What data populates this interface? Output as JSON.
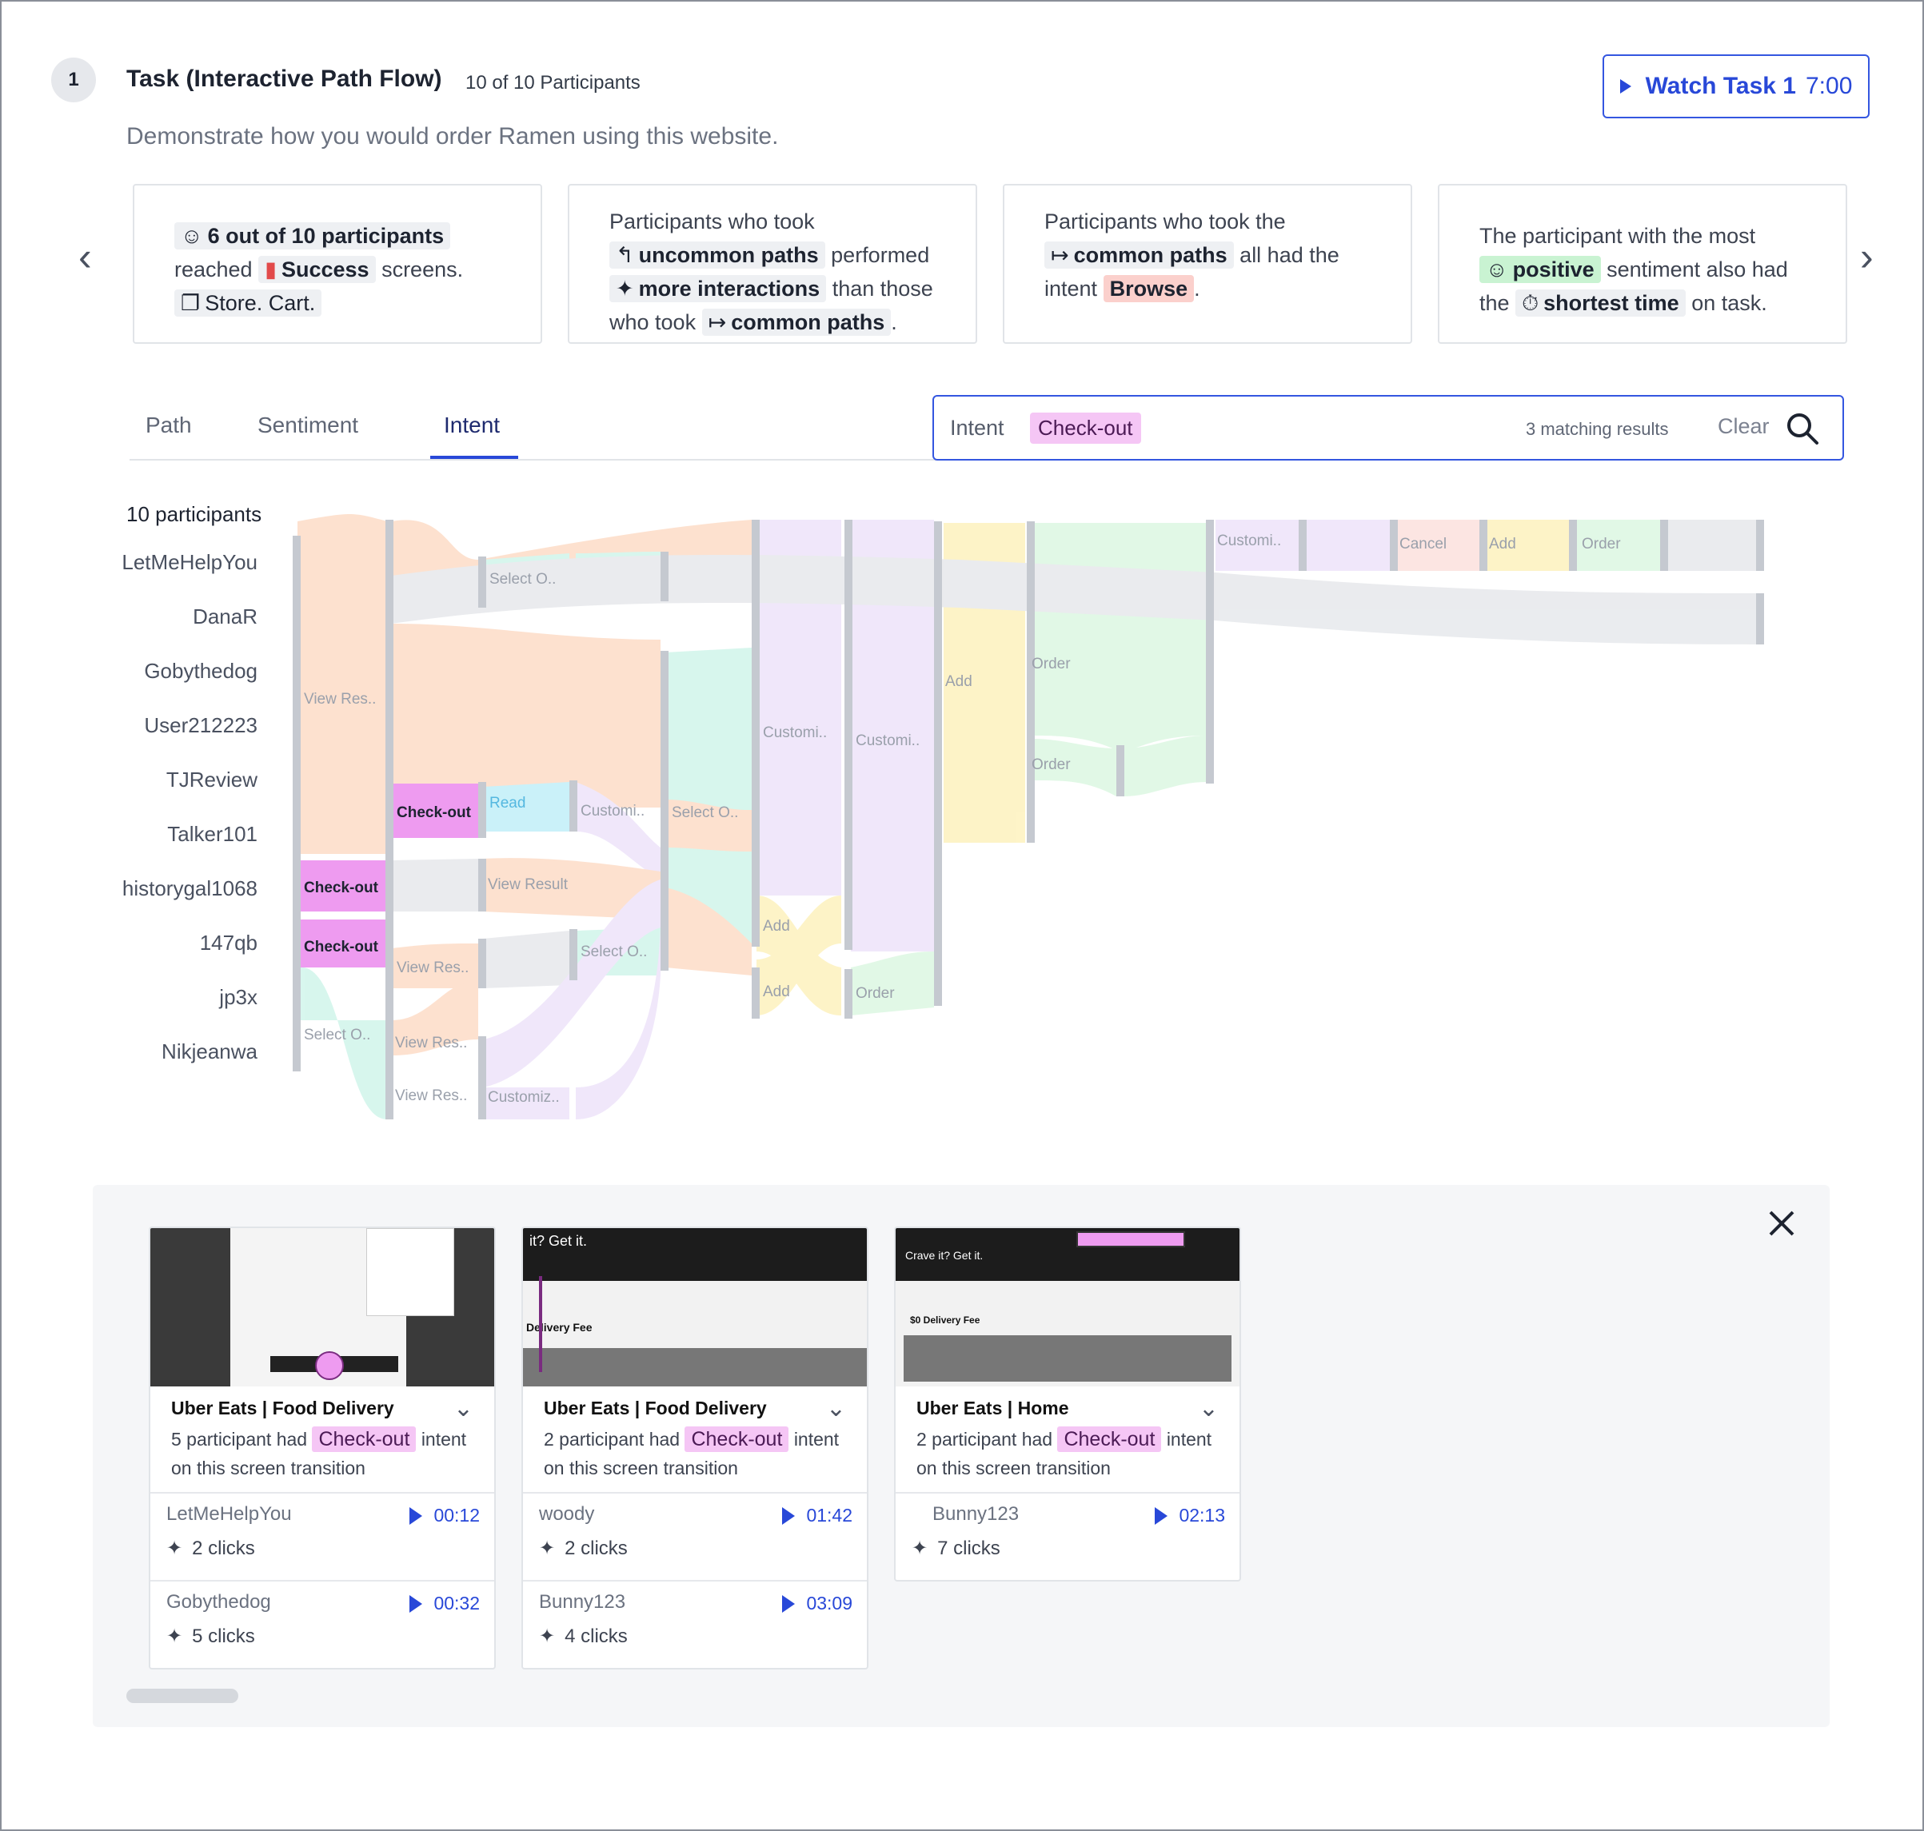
{
  "task": {
    "number": "1",
    "title": "Task (Interactive Path Flow)",
    "participants_count": "10 of 10 Participants",
    "description": "Demonstrate how you would order Ramen using this website.",
    "watch_label": "Watch Task 1",
    "watch_duration": "7:00"
  },
  "insights": [
    {
      "parts": [
        "6 out of 10 participants",
        "reached",
        "Success",
        "screens.",
        "Store. Cart."
      ]
    },
    {
      "parts": [
        "Participants who took",
        "uncommon paths",
        "performed",
        "more interactions",
        "than those",
        "who took",
        "common paths",
        "."
      ]
    },
    {
      "parts": [
        "Participants who took the",
        "common paths",
        "all had the",
        "intent",
        "Browse",
        "."
      ]
    },
    {
      "parts": [
        "The participant with the most",
        "positive",
        "sentiment also had",
        "the",
        "shortest time",
        "on task."
      ]
    }
  ],
  "tabs": [
    "Path",
    "Sentiment",
    "Intent"
  ],
  "search": {
    "label": "Intent",
    "value": "Check-out",
    "results": "3 matching results",
    "clear": "Clear"
  },
  "flow": {
    "total": "10 participants",
    "participants": [
      "LetMeHelpYou",
      "DanaR",
      "Gobythedog",
      "User212223",
      "TJReview",
      "Talker101",
      "historygal1068",
      "147qb",
      "jp3x",
      "Nikjeanwa"
    ],
    "nodes": {
      "n1": "View Res..",
      "n2": "Check-out",
      "n3": "Check-out",
      "n4": "Select O..",
      "n5": "Select O..",
      "n6": "Check-out",
      "n7": "View Res..",
      "n8": "View Res..",
      "n9": "View Res..",
      "n10": "Read",
      "n11": "View Result",
      "n12": "Customiz..",
      "n13": "Customi..",
      "n14": "Select O..",
      "n15": "Select O..",
      "n16": "Customi..",
      "n17": "Add",
      "n18": "Add",
      "n19": "Customi..",
      "n20": "Order",
      "n21": "Add",
      "n22": "Order",
      "n23": "Order",
      "n24": "Customi..",
      "n25": "Cancel",
      "n26": "Add",
      "n27": "Order"
    }
  },
  "screens": [
    {
      "title": "Uber Eats | Food Delivery",
      "desc_pre": "5 participant had",
      "intent": "Check-out",
      "desc_post": "intent",
      "desc_line2": "on this screen transition",
      "rows": [
        {
          "name": "LetMeHelpYou",
          "time": "00:12",
          "clicks": "2 clicks"
        },
        {
          "name": "Gobythedog",
          "time": "00:32",
          "clicks": "5 clicks"
        }
      ]
    },
    {
      "title": "Uber Eats | Food Delivery",
      "desc_pre": "2 participant had",
      "intent": "Check-out",
      "desc_post": "intent",
      "desc_line2": "on this screen transition",
      "shot_head": "it? Get it.",
      "shot_sub": "Delivery Fee",
      "rows": [
        {
          "name": "woody",
          "time": "01:42",
          "clicks": "2 clicks"
        },
        {
          "name": "Bunny123",
          "time": "03:09",
          "clicks": "4 clicks"
        }
      ]
    },
    {
      "title": "Uber Eats | Home",
      "desc_pre": "2 participant had",
      "intent": "Check-out",
      "desc_post": "intent",
      "desc_line2": "on this screen transition",
      "shot_head": "Crave it? Get it.",
      "shot_sub": "$0 Delivery Fee",
      "rows": [
        {
          "name": "Bunny123",
          "time": "02:13",
          "clicks": "7 clicks"
        }
      ]
    }
  ],
  "colors": {
    "accent": "#2848d8",
    "checkout": "#f5c6f5",
    "browse": "#fbd0cc",
    "positive": "#c9f3d2"
  }
}
